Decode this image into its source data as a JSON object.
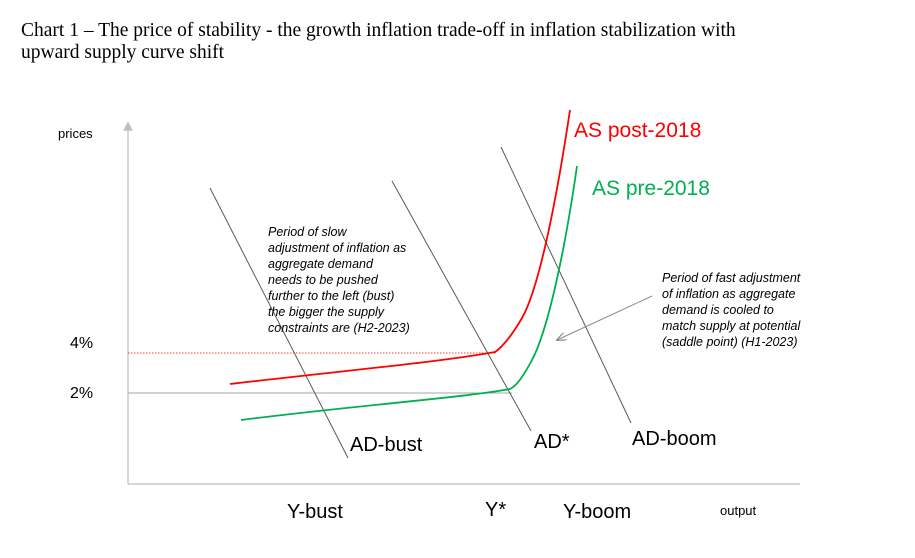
{
  "title_lines": [
    "Chart 1 – The price of stability - the growth inflation trade-off in inflation stabilization with",
    "upward supply curve shift"
  ],
  "chart_data": {
    "type": "line",
    "xlabel": "output",
    "ylabel": "prices",
    "y_ticks": [
      "4%",
      "2%"
    ],
    "x_labels": [
      "Y-bust",
      "Y*",
      "Y-boom"
    ],
    "series": [
      {
        "name": "AS post-2018",
        "color": "#ff0000"
      },
      {
        "name": "AS pre-2018",
        "color": "#00b050"
      },
      {
        "name": "AD-bust",
        "color": "#595959"
      },
      {
        "name": "AD*",
        "color": "#595959"
      },
      {
        "name": "AD-boom",
        "color": "#595959"
      }
    ],
    "annotations": [
      {
        "id": "slow",
        "lines": [
          "Period of slow",
          "adjustment of inflation as",
          "aggregate demand",
          "needs to be pushed",
          "further to the left (bust)",
          "the bigger the supply",
          "constraints are (H2-2023)"
        ]
      },
      {
        "id": "fast",
        "lines": [
          "Period of fast adjustment",
          "of inflation as aggregate",
          "demand is cooled to",
          "match supply at potential",
          "(saddle point) (H1-2023)"
        ]
      }
    ]
  }
}
